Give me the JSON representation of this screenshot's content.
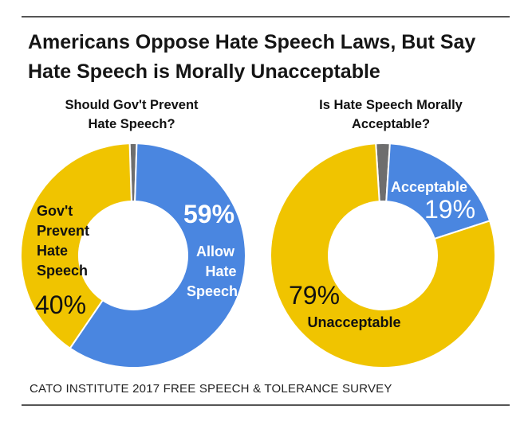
{
  "header": {
    "title_line1": "Americans Oppose Hate Speech Laws, But Say",
    "title_line2": "Hate Speech is Morally Unacceptable"
  },
  "footer": {
    "source": "CATO INSTITUTE 2017 FREE SPEECH & TOLERANCE SURVEY"
  },
  "colors": {
    "blue": "#4a86e0",
    "yellow": "#f0c400",
    "gray": "#6e6e6e"
  },
  "chart_data": [
    {
      "type": "pie",
      "donut": true,
      "title_line1": "Should Gov't Prevent",
      "title_line2": "Hate Speech?",
      "slices": [
        {
          "value": 59,
          "label_pct": "59%",
          "label_lines": [
            "Allow",
            "Hate",
            "Speech"
          ],
          "color": "#4a86e0"
        },
        {
          "value": 40,
          "label_pct": "40%",
          "label_lines": [
            "Gov't",
            "Prevent",
            "Hate",
            "Speech"
          ],
          "color": "#f0c400"
        },
        {
          "value": 1,
          "color": "#6e6e6e"
        }
      ]
    },
    {
      "type": "pie",
      "donut": true,
      "title_line1": "Is Hate Speech Morally",
      "title_line2": "Acceptable?",
      "slices": [
        {
          "value": 19,
          "label_pct": "19%",
          "label_lines": [
            "Acceptable"
          ],
          "color": "#4a86e0"
        },
        {
          "value": 79,
          "label_pct": "79%",
          "label_lines": [
            "Unacceptable"
          ],
          "color": "#f0c400"
        },
        {
          "value": 2,
          "color": "#6e6e6e"
        }
      ]
    }
  ]
}
